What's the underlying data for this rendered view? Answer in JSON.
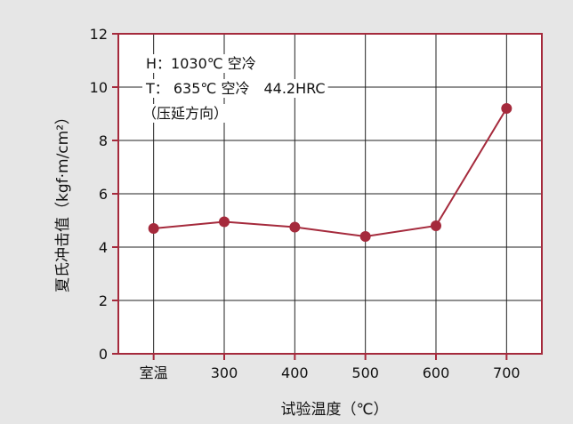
{
  "chart_data": {
    "type": "line",
    "title": "",
    "xlabel": "试验温度（℃）",
    "ylabel": "夏氏冲击值（kgf·m/cm²）",
    "categories": [
      "室温",
      "300",
      "400",
      "500",
      "600",
      "700"
    ],
    "series": [
      {
        "values": [
          4.7,
          4.95,
          4.75,
          4.4,
          4.8,
          9.2
        ]
      }
    ],
    "ylim": [
      0,
      12
    ],
    "yticks": [
      0,
      2,
      4,
      6,
      8,
      10,
      12
    ],
    "grid": true,
    "annotations": [
      "H：1030℃ 空冷",
      "T： 635℃ 空冷　44.2HRC",
      "（压延方向）"
    ],
    "colors": {
      "line": "#a52a3c",
      "marker": "#a52a3c",
      "frame": "#a52a3c",
      "grid": "#222222",
      "background": "#e6e6e6"
    }
  }
}
